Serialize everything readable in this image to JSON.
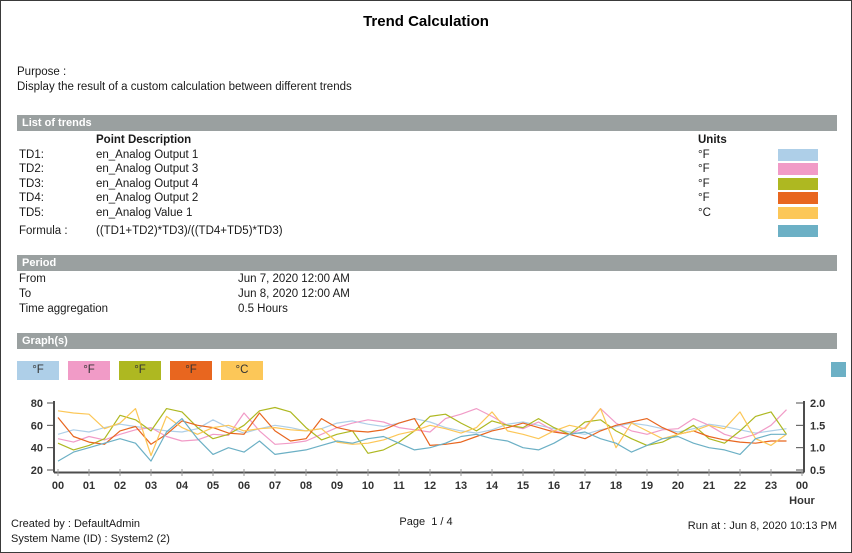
{
  "report": {
    "title": "Trend Calculation",
    "purpose_label": "Purpose :",
    "purpose_text": "Display the result of a custom calculation between different trends"
  },
  "list_of_trends": {
    "header": "List of trends",
    "col_point": "Point Description",
    "col_units": "Units",
    "rows": [
      {
        "label": "TD1:",
        "description": "en_Analog Output 1",
        "unit": "°F",
        "color": "#aecfe8"
      },
      {
        "label": "TD2:",
        "description": "en_Analog Output 3",
        "unit": "°F",
        "color": "#f19bc7"
      },
      {
        "label": "TD3:",
        "description": "en_Analog Output 4",
        "unit": "°F",
        "color": "#aeb821"
      },
      {
        "label": "TD4:",
        "description": "en_Analog Output 2",
        "unit": "°F",
        "color": "#e8661f"
      },
      {
        "label": "TD5:",
        "description": "en_Analog Value 1",
        "unit": "°C",
        "color": "#fcc758"
      }
    ],
    "formula": {
      "label": "Formula :",
      "expression": "((TD1+TD2)*TD3)/((TD4+TD5)*TD3)",
      "color": "#6cb0c5"
    }
  },
  "period": {
    "header": "Period",
    "rows": [
      {
        "label": "From",
        "value": "Jun 7, 2020 12:00 AM"
      },
      {
        "label": "To",
        "value": "Jun 8, 2020 12:00 AM"
      },
      {
        "label": "Time aggregation",
        "value": "0.5 Hours"
      }
    ]
  },
  "graphs": {
    "header": "Graph(s)",
    "legend": [
      {
        "label": "°F",
        "color": "#aecfe8"
      },
      {
        "label": "°F",
        "color": "#f19bc7"
      },
      {
        "label": "°F",
        "color": "#aeb821"
      },
      {
        "label": "°F",
        "color": "#e8661f"
      },
      {
        "label": "°C",
        "color": "#fcc758"
      }
    ],
    "legend_right_color": "#6cb0c5"
  },
  "chart_data": {
    "type": "line",
    "x_unit": "Hour",
    "x_step_hours": 0.5,
    "x_ticks": [
      "00",
      "01",
      "02",
      "03",
      "04",
      "05",
      "06",
      "07",
      "08",
      "09",
      "10",
      "11",
      "12",
      "13",
      "14",
      "15",
      "16",
      "17",
      "18",
      "19",
      "20",
      "21",
      "22",
      "23",
      "00"
    ],
    "left_axis": {
      "ticks": [
        20,
        40,
        60,
        80
      ],
      "range": [
        20,
        80
      ]
    },
    "right_axis": {
      "ticks": [
        0.5,
        1.0,
        1.5,
        2.0
      ],
      "range": [
        0.5,
        2.0
      ]
    },
    "grid": false,
    "legend_position": "top-left",
    "series": [
      {
        "id": "td1",
        "name": "TD1 en_Analog Output 1",
        "unit": "°F",
        "axis": "left",
        "color": "#aecfe8",
        "values": [
          52,
          56,
          54,
          58,
          61,
          59,
          57,
          55,
          54,
          57,
          65,
          58,
          53,
          57,
          60,
          58,
          55,
          57,
          62,
          64,
          61,
          59,
          62,
          66,
          63,
          58,
          55,
          53,
          56,
          61,
          63,
          60,
          57,
          54,
          52,
          56,
          59,
          62,
          60,
          57,
          54,
          57,
          61,
          59,
          56,
          53,
          55,
          57
        ]
      },
      {
        "id": "td2",
        "name": "TD2 en_Analog Output 3",
        "unit": "°F",
        "axis": "left",
        "color": "#f19bc7",
        "values": [
          48,
          45,
          50,
          47,
          52,
          56,
          58,
          50,
          46,
          47,
          52,
          51,
          71,
          55,
          43,
          44,
          46,
          52,
          58,
          62,
          65,
          63,
          58,
          56,
          54,
          66,
          70,
          75,
          68,
          60,
          57,
          63,
          55,
          52,
          58,
          75,
          62,
          55,
          52,
          56,
          57,
          66,
          60,
          52,
          48,
          52,
          60,
          74
        ]
      },
      {
        "id": "td3",
        "name": "TD3 en_Analog Output 4",
        "unit": "°F",
        "axis": "left",
        "color": "#aeb821",
        "values": [
          44,
          38,
          42,
          48,
          69,
          65,
          55,
          75,
          72,
          58,
          48,
          52,
          60,
          73,
          76,
          72,
          58,
          47,
          52,
          55,
          35,
          38,
          45,
          55,
          68,
          70,
          62,
          55,
          64,
          60,
          58,
          66,
          58,
          52,
          63,
          65,
          55,
          48,
          42,
          45,
          52,
          60,
          48,
          44,
          55,
          68,
          72,
          52
        ]
      },
      {
        "id": "td4",
        "name": "TD4 en_Analog Output 2",
        "unit": "°F",
        "axis": "left",
        "color": "#e8661f",
        "values": [
          67,
          50,
          45,
          43,
          55,
          59,
          43,
          52,
          64,
          60,
          58,
          53,
          52,
          71,
          55,
          46,
          48,
          66,
          58,
          55,
          54,
          56,
          62,
          66,
          42,
          43,
          45,
          50,
          55,
          58,
          62,
          58,
          54,
          52,
          48,
          55,
          60,
          63,
          66,
          58,
          52,
          55,
          50,
          47,
          45,
          44,
          46,
          46
        ]
      },
      {
        "id": "td5",
        "name": "TD5 en_Analog Value 1",
        "unit": "°C",
        "axis": "left",
        "color": "#fcc758",
        "values": [
          73,
          71,
          70,
          57,
          62,
          75,
          33,
          68,
          58,
          52,
          58,
          60,
          55,
          57,
          58,
          56,
          55,
          57,
          45,
          43,
          44,
          47,
          52,
          55,
          60,
          57,
          53,
          58,
          72,
          55,
          52,
          48,
          55,
          60,
          57,
          75,
          40,
          62,
          55,
          48,
          52,
          55,
          60,
          57,
          72,
          48,
          42,
          52
        ]
      },
      {
        "id": "formula",
        "name": "Formula ((TD1+TD2)*TD3)/((TD4+TD5)*TD3)",
        "unit": "",
        "axis": "right",
        "color": "#6cb0c5",
        "values": [
          0.7,
          0.9,
          1.0,
          1.1,
          1.2,
          1.1,
          0.7,
          1.35,
          1.65,
          1.2,
          0.85,
          1.0,
          0.9,
          1.15,
          0.85,
          0.9,
          0.95,
          1.05,
          1.15,
          1.1,
          1.2,
          1.25,
          1.1,
          0.95,
          1.0,
          1.1,
          1.25,
          1.3,
          1.2,
          1.15,
          1.0,
          0.95,
          1.1,
          1.3,
          1.35,
          1.2,
          1.1,
          0.9,
          1.05,
          1.2,
          1.25,
          1.1,
          1.0,
          0.95,
          0.85,
          1.2,
          1.3,
          1.3
        ]
      }
    ]
  },
  "footer": {
    "created_by": "Created by : DefaultAdmin",
    "system_name": "System Name (ID) : System2 (2)",
    "page_label": "Page",
    "page_value": "1 / 4",
    "run_at": "Run at : Jun 8, 2020 10:13 PM"
  }
}
